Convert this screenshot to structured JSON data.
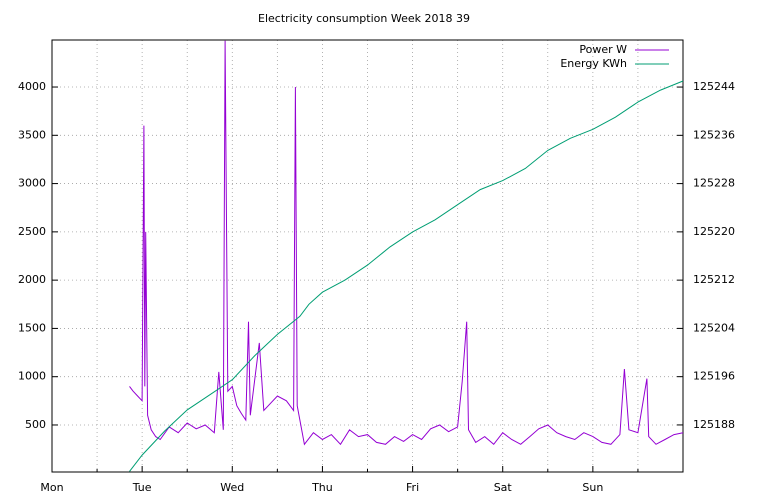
{
  "chart_data": {
    "type": "line",
    "title": "Electricity consumption Week 2018 39",
    "xlim": [
      0,
      7
    ],
    "xticks": [
      {
        "value": 0,
        "label": "Mon"
      },
      {
        "value": 1,
        "label": "Tue"
      },
      {
        "value": 2,
        "label": "Wed"
      },
      {
        "value": 3,
        "label": "Thu"
      },
      {
        "value": 4,
        "label": "Fri"
      },
      {
        "value": 5,
        "label": "Sat"
      },
      {
        "value": 6,
        "label": "Sun"
      }
    ],
    "xminorticks": [
      0.5,
      1.5,
      2.5,
      3.5,
      4.5,
      5.5,
      6.5
    ],
    "ylim": [
      13,
      4487
    ],
    "yticks": [
      500,
      1000,
      1500,
      2000,
      2500,
      3000,
      3500,
      4000
    ],
    "y2lim": [
      125180.2,
      125251.8
    ],
    "y2ticks": [
      125188,
      125196,
      125204,
      125212,
      125220,
      125228,
      125236,
      125244
    ],
    "grid": true,
    "legend": "top-right",
    "series": [
      {
        "name": "Power W",
        "color": "#9400d3",
        "x": [
          0.86,
          0.9,
          0.95,
          1.0,
          1.02,
          1.03,
          1.04,
          1.06,
          1.1,
          1.15,
          1.2,
          1.3,
          1.4,
          1.5,
          1.6,
          1.7,
          1.8,
          1.85,
          1.9,
          1.92,
          1.95,
          2.0,
          2.05,
          2.1,
          2.15,
          2.18,
          2.2,
          2.3,
          2.35,
          2.4,
          2.5,
          2.6,
          2.68,
          2.7,
          2.72,
          2.8,
          2.9,
          3.0,
          3.1,
          3.2,
          3.3,
          3.4,
          3.5,
          3.6,
          3.7,
          3.8,
          3.9,
          4.0,
          4.1,
          4.2,
          4.3,
          4.4,
          4.5,
          4.55,
          4.6,
          4.62,
          4.7,
          4.8,
          4.9,
          5.0,
          5.1,
          5.2,
          5.3,
          5.4,
          5.5,
          5.6,
          5.7,
          5.8,
          5.9,
          6.0,
          6.1,
          6.2,
          6.3,
          6.35,
          6.4,
          6.5,
          6.6,
          6.62,
          6.7,
          6.8,
          6.9,
          7.0
        ],
        "values": [
          900,
          850,
          800,
          750,
          3600,
          900,
          2500,
          600,
          450,
          380,
          350,
          480,
          420,
          520,
          460,
          500,
          420,
          1050,
          450,
          4480,
          850,
          900,
          700,
          620,
          550,
          1570,
          600,
          1350,
          650,
          700,
          800,
          750,
          650,
          4000,
          700,
          300,
          420,
          350,
          400,
          300,
          450,
          380,
          400,
          320,
          300,
          380,
          330,
          400,
          350,
          460,
          500,
          430,
          480,
          950,
          1570,
          450,
          320,
          380,
          300,
          420,
          350,
          300,
          380,
          460,
          500,
          420,
          380,
          350,
          420,
          380,
          320,
          300,
          400,
          1080,
          450,
          420,
          980,
          380,
          300,
          350,
          400,
          420
        ]
      },
      {
        "name": "Energy KWh",
        "color": "#009e73",
        "axis": "y2",
        "x": [
          0.86,
          1.0,
          1.25,
          1.5,
          1.75,
          2.0,
          2.25,
          2.5,
          2.75,
          2.85,
          3.0,
          3.25,
          3.5,
          3.75,
          4.0,
          4.25,
          4.5,
          4.75,
          5.0,
          5.25,
          5.5,
          5.75,
          6.0,
          6.25,
          6.5,
          6.75,
          7.0
        ],
        "values": [
          125180.3,
          125183,
          125187,
          125190.5,
          125193,
          125195.5,
          125199.5,
          125203,
          125206,
          125208,
          125210,
          125212,
          125214.5,
          125217.5,
          125220,
          125222,
          125224.5,
          125227,
          125228.5,
          125230.5,
          125233.5,
          125235.5,
          125237,
          125239,
          125241.5,
          125243.5,
          125245
        ]
      }
    ]
  }
}
